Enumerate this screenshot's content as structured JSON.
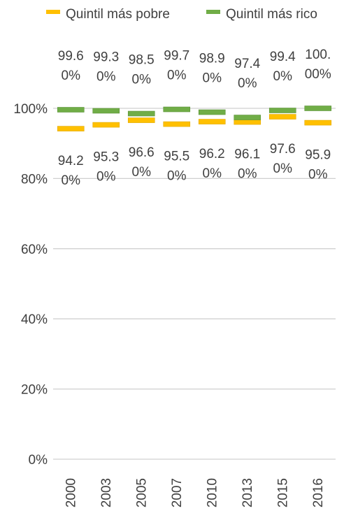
{
  "chart_data": {
    "type": "line",
    "markers": "dash",
    "title": "",
    "xlabel": "",
    "ylabel": "",
    "categories": [
      "2000",
      "2003",
      "2005",
      "2007",
      "2010",
      "2013",
      "2015",
      "2016"
    ],
    "ylim": [
      0,
      100
    ],
    "yticks": [
      {
        "value": 0,
        "label": "0%"
      },
      {
        "value": 20,
        "label": "20%"
      },
      {
        "value": 40,
        "label": "40%"
      },
      {
        "value": 60,
        "label": "60%"
      },
      {
        "value": 80,
        "label": "80%"
      },
      {
        "value": 100,
        "label": "100%"
      }
    ],
    "grid": true,
    "legend_position": "top",
    "series": [
      {
        "name": "Quintil más pobre",
        "color": "#FFC000",
        "values": [
          94.2,
          95.3,
          96.6,
          95.5,
          96.2,
          96.1,
          97.6,
          95.9
        ],
        "label_lines": [
          [
            "94.2",
            "0%"
          ],
          [
            "95.3",
            "0%"
          ],
          [
            "96.6",
            "0%"
          ],
          [
            "95.5",
            "0%"
          ],
          [
            "96.2",
            "0%"
          ],
          [
            "96.1",
            "0%"
          ],
          [
            "97.6",
            "0%"
          ],
          [
            "95.9",
            "0%"
          ]
        ]
      },
      {
        "name": "Quintil más rico",
        "color": "#70AD47",
        "values": [
          99.6,
          99.3,
          98.5,
          99.7,
          98.9,
          97.4,
          99.4,
          100.0
        ],
        "label_lines": [
          [
            "99.6",
            "0%"
          ],
          [
            "99.3",
            "0%"
          ],
          [
            "98.5",
            "0%"
          ],
          [
            "99.7",
            "0%"
          ],
          [
            "98.9",
            "0%"
          ],
          [
            "97.4",
            "0%"
          ],
          [
            "99.4",
            "0%"
          ],
          [
            "100.",
            "00%"
          ]
        ]
      }
    ]
  }
}
